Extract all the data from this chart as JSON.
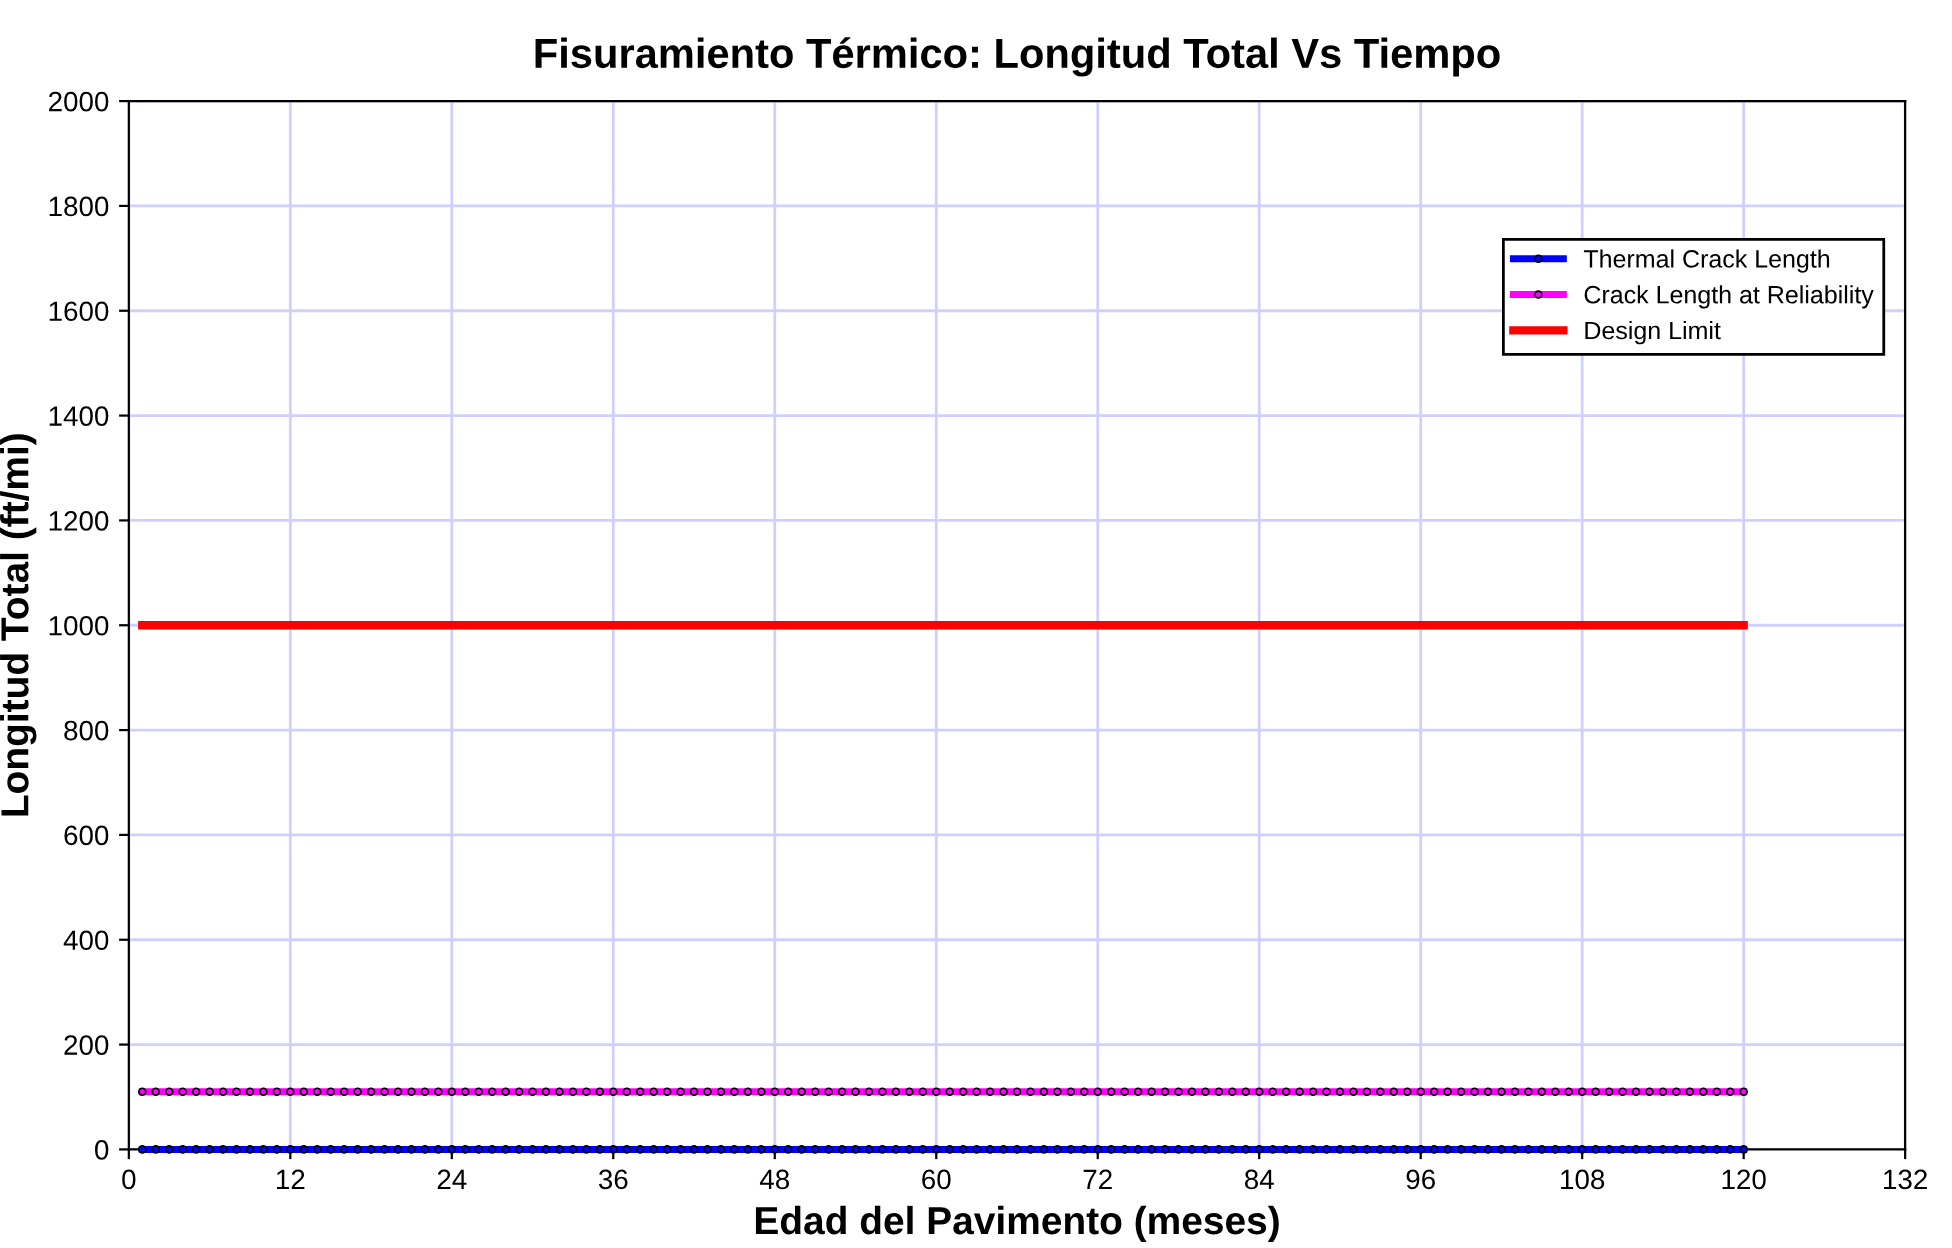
{
  "chart_data": {
    "type": "line",
    "title": "Fisuramiento Térmico: Longitud Total Vs Tiempo",
    "xlabel": "Edad del Pavimento (meses)",
    "ylabel": "Longitud Total (ft/mi)",
    "xlim": [
      0,
      132
    ],
    "xticks": [
      0,
      12,
      24,
      36,
      48,
      60,
      72,
      84,
      96,
      108,
      120,
      132
    ],
    "ylim": [
      0,
      2000
    ],
    "yticks": [
      0,
      200,
      400,
      600,
      800,
      1000,
      1200,
      1400,
      1600,
      1800,
      2000
    ],
    "grid": true,
    "legend": "top right",
    "series": [
      {
        "name": "Thermal Crack Length",
        "color": "#0000ff",
        "marker": "circle",
        "x": [
          1,
          2,
          3,
          4,
          5,
          6,
          7,
          8,
          9,
          10,
          11,
          12,
          13,
          14,
          15,
          16,
          17,
          18,
          19,
          20,
          21,
          22,
          23,
          24,
          25,
          26,
          27,
          28,
          29,
          30,
          31,
          32,
          33,
          34,
          35,
          36,
          37,
          38,
          39,
          40,
          41,
          42,
          43,
          44,
          45,
          46,
          47,
          48,
          49,
          50,
          51,
          52,
          53,
          54,
          55,
          56,
          57,
          58,
          59,
          60,
          61,
          62,
          63,
          64,
          65,
          66,
          67,
          68,
          69,
          70,
          71,
          72,
          73,
          74,
          75,
          76,
          77,
          78,
          79,
          80,
          81,
          82,
          83,
          84,
          85,
          86,
          87,
          88,
          89,
          90,
          91,
          92,
          93,
          94,
          95,
          96,
          97,
          98,
          99,
          100,
          101,
          102,
          103,
          104,
          105,
          106,
          107,
          108,
          109,
          110,
          111,
          112,
          113,
          114,
          115,
          116,
          117,
          118,
          119,
          120
        ],
        "values": [
          0,
          0,
          0,
          0,
          0,
          0,
          0,
          0,
          0,
          0,
          0,
          0,
          0,
          0,
          0,
          0,
          0,
          0,
          0,
          0,
          0,
          0,
          0,
          0,
          0,
          0,
          0,
          0,
          0,
          0,
          0,
          0,
          0,
          0,
          0,
          0,
          0,
          0,
          0,
          0,
          0,
          0,
          0,
          0,
          0,
          0,
          0,
          0,
          0,
          0,
          0,
          0,
          0,
          0,
          0,
          0,
          0,
          0,
          0,
          0,
          0,
          0,
          0,
          0,
          0,
          0,
          0,
          0,
          0,
          0,
          0,
          0,
          0,
          0,
          0,
          0,
          0,
          0,
          0,
          0,
          0,
          0,
          0,
          0,
          0,
          0,
          0,
          0,
          0,
          0,
          0,
          0,
          0,
          0,
          0,
          0,
          0,
          0,
          0,
          0,
          0,
          0,
          0,
          0,
          0,
          0,
          0,
          0,
          0,
          0,
          0,
          0,
          0,
          0,
          0,
          0,
          0,
          0,
          0,
          0
        ]
      },
      {
        "name": "Crack Length at Reliability",
        "color": "#ff00ff",
        "marker": "circle",
        "x": [
          1,
          2,
          3,
          4,
          5,
          6,
          7,
          8,
          9,
          10,
          11,
          12,
          13,
          14,
          15,
          16,
          17,
          18,
          19,
          20,
          21,
          22,
          23,
          24,
          25,
          26,
          27,
          28,
          29,
          30,
          31,
          32,
          33,
          34,
          35,
          36,
          37,
          38,
          39,
          40,
          41,
          42,
          43,
          44,
          45,
          46,
          47,
          48,
          49,
          50,
          51,
          52,
          53,
          54,
          55,
          56,
          57,
          58,
          59,
          60,
          61,
          62,
          63,
          64,
          65,
          66,
          67,
          68,
          69,
          70,
          71,
          72,
          73,
          74,
          75,
          76,
          77,
          78,
          79,
          80,
          81,
          82,
          83,
          84,
          85,
          86,
          87,
          88,
          89,
          90,
          91,
          92,
          93,
          94,
          95,
          96,
          97,
          98,
          99,
          100,
          101,
          102,
          103,
          104,
          105,
          106,
          107,
          108,
          109,
          110,
          111,
          112,
          113,
          114,
          115,
          116,
          117,
          118,
          119,
          120
        ],
        "values": [
          110,
          110,
          110,
          110,
          110,
          110,
          110,
          110,
          110,
          110,
          110,
          110,
          110,
          110,
          110,
          110,
          110,
          110,
          110,
          110,
          110,
          110,
          110,
          110,
          110,
          110,
          110,
          110,
          110,
          110,
          110,
          110,
          110,
          110,
          110,
          110,
          110,
          110,
          110,
          110,
          110,
          110,
          110,
          110,
          110,
          110,
          110,
          110,
          110,
          110,
          110,
          110,
          110,
          110,
          110,
          110,
          110,
          110,
          110,
          110,
          110,
          110,
          110,
          110,
          110,
          110,
          110,
          110,
          110,
          110,
          110,
          110,
          110,
          110,
          110,
          110,
          110,
          110,
          110,
          110,
          110,
          110,
          110,
          110,
          110,
          110,
          110,
          110,
          110,
          110,
          110,
          110,
          110,
          110,
          110,
          110,
          110,
          110,
          110,
          110,
          110,
          110,
          110,
          110,
          110,
          110,
          110,
          110,
          110,
          110,
          110,
          110,
          110,
          110,
          110,
          110,
          110,
          110,
          110,
          110
        ]
      },
      {
        "name": "Design Limit",
        "color": "#ff0000",
        "marker": "none",
        "x": [
          1,
          120
        ],
        "values": [
          1000,
          1000
        ]
      }
    ]
  }
}
